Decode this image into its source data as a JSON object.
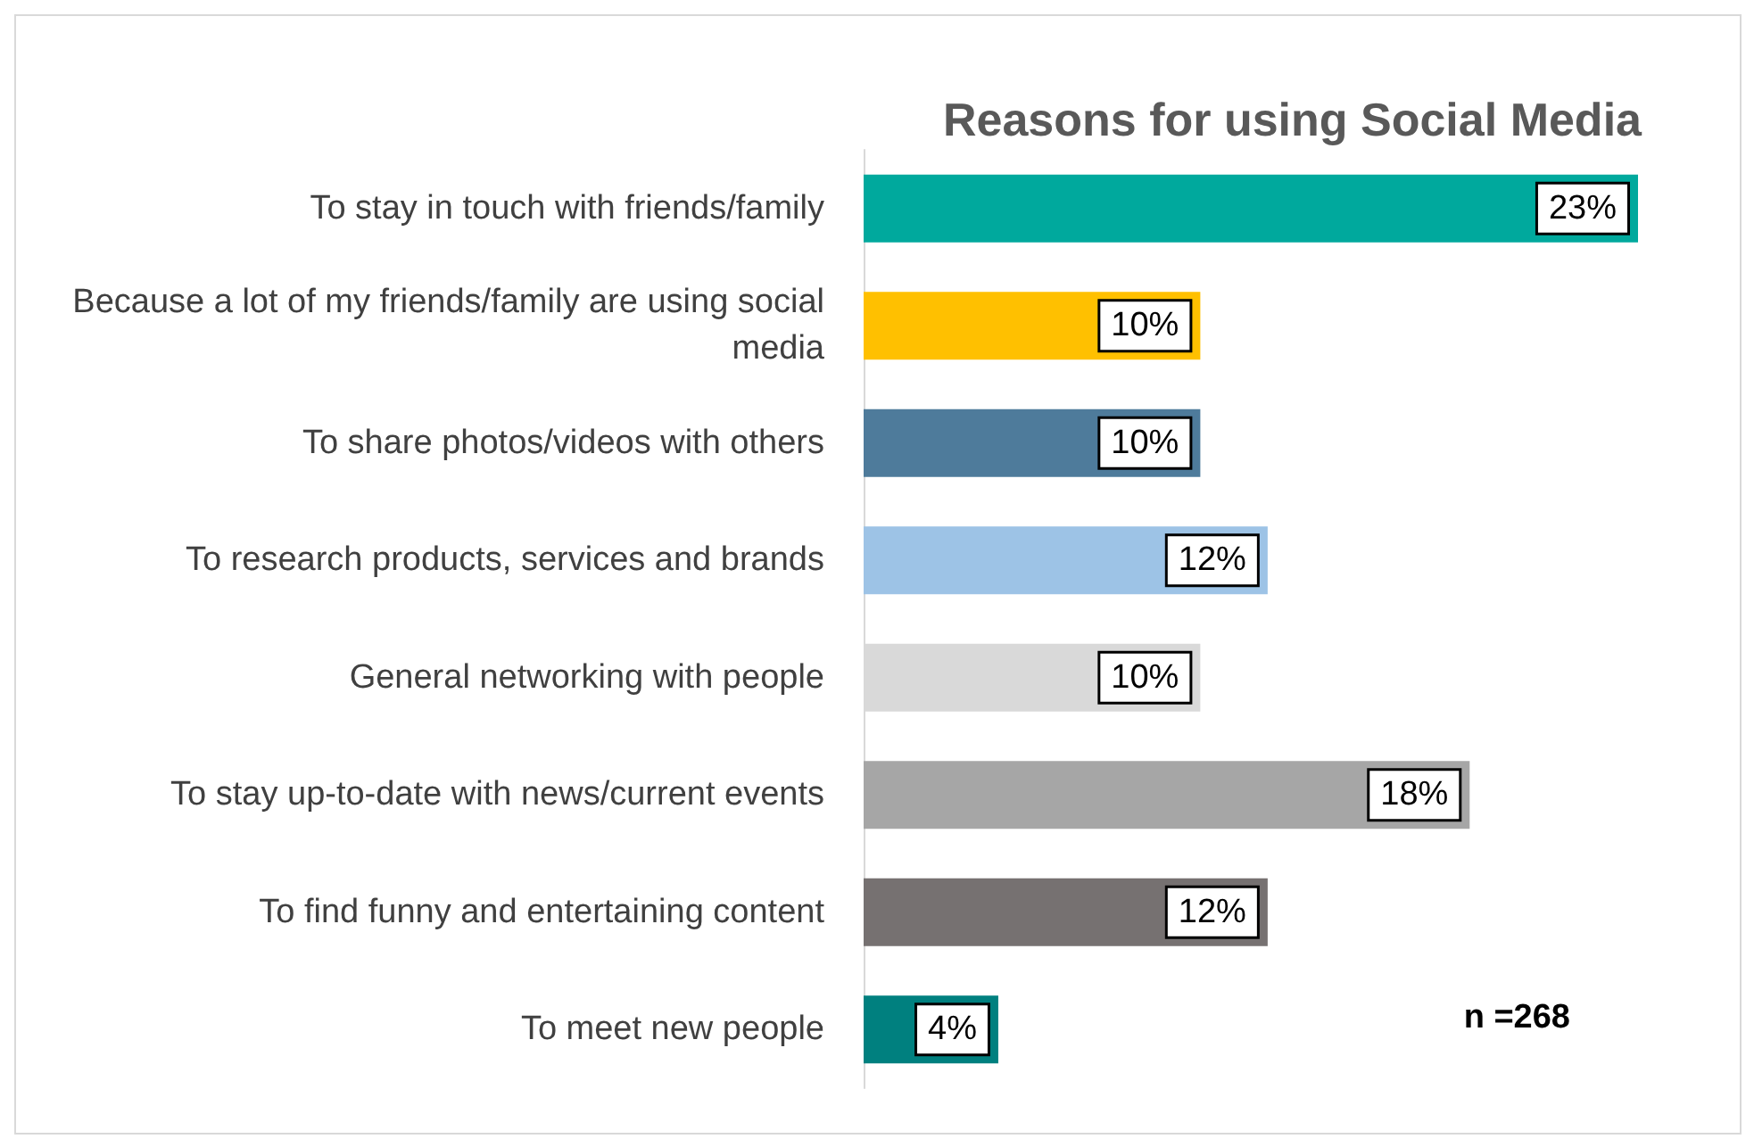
{
  "chart_data": {
    "type": "bar",
    "orientation": "horizontal",
    "tick_labels": "y",
    "title": "Reasons for using Social Media",
    "categories": [
      "To stay in touch with friends/family",
      "Because a lot of my friends/family are using social media",
      "To share photos/videos with others",
      "To research products, services and brands",
      "General networking with people",
      "To stay up-to-date with news/current events",
      "To find funny and entertaining content",
      "To meet new people"
    ],
    "values": [
      23,
      10,
      10,
      12,
      10,
      18,
      12,
      4
    ],
    "value_labels": [
      "23%",
      "10%",
      "10%",
      "12%",
      "10%",
      "18%",
      "12%",
      "4%"
    ],
    "colors": [
      "#00a99d",
      "#ffc000",
      "#4e7b9b",
      "#9dc3e6",
      "#d9d9d9",
      "#a6a6a6",
      "#767171",
      "#00807f"
    ],
    "annotations": [
      "n =268"
    ]
  }
}
